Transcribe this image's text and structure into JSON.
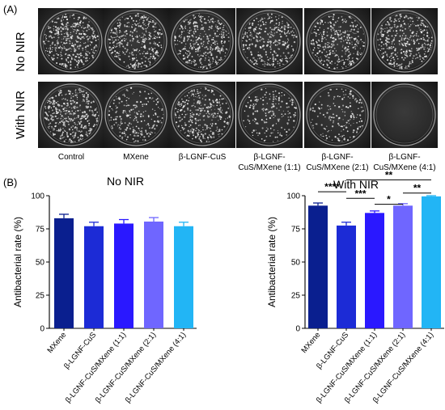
{
  "panel_a": {
    "label": "(A)",
    "rows": [
      "No NIR",
      "With NIR"
    ],
    "columns": [
      {
        "label_lines": [
          "Control"
        ]
      },
      {
        "label_lines": [
          "MXene"
        ]
      },
      {
        "label_lines": [
          "β-LGNF-CuS"
        ]
      },
      {
        "label_lines": [
          "β-LGNF-",
          "CuS/MXene (1:1)"
        ]
      },
      {
        "label_lines": [
          "β-LGNF-",
          "CuS/MXene (2:1)"
        ]
      },
      {
        "label_lines": [
          "β-LGNF-",
          "CuS/MXene (4:1)"
        ]
      }
    ],
    "colony_density": [
      [
        1.0,
        0.85,
        0.85,
        0.8,
        0.82,
        0.85
      ],
      [
        1.0,
        0.55,
        0.8,
        0.45,
        0.42,
        0.0
      ]
    ]
  },
  "panel_b": {
    "label": "(B)",
    "colors": [
      "#0a1f8f",
      "#1c2bd6",
      "#2a18ff",
      "#6f66ff",
      "#22b5f5"
    ],
    "chart_data": [
      {
        "type": "bar",
        "title": "No NIR",
        "ylabel": "Antibacterial rate (%)",
        "ylim": [
          0,
          100
        ],
        "yticks": [
          "0",
          "25",
          "50",
          "75",
          "100"
        ],
        "grid": false,
        "categories": [
          "MXene",
          "β-LGNF-CuS",
          "β-LGNF-CuS/MXene (1:1)",
          "β-LGNF-CuS/MXene (2:1)",
          "β-LGNF-CuS/MXene (4:1)"
        ],
        "values": [
          83,
          77,
          79,
          80.5,
          77
        ],
        "errors": [
          3,
          3,
          3,
          3,
          3
        ],
        "significance": []
      },
      {
        "type": "bar",
        "title": "With NIR",
        "ylabel": "Antibacterial rate (%)",
        "ylim": [
          0,
          100
        ],
        "yticks": [
          "0",
          "25",
          "50",
          "75",
          "100"
        ],
        "grid": false,
        "categories": [
          "MXene",
          "β-LGNF-CuS",
          "β-LGNF-CuS/MXene (1:1)",
          "β-LGNF-CuS/MXene (2:1)",
          "β-LGNF-CuS/MXene (4:1)"
        ],
        "values": [
          92.5,
          77.5,
          87,
          92.5,
          99.5
        ],
        "errors": [
          2,
          2.5,
          1.5,
          1.5,
          0.5
        ],
        "significance": [
          {
            "from": 0,
            "to": 1,
            "value": 103,
            "stars": "****"
          },
          {
            "from": 1,
            "to": 2,
            "value": 98,
            "stars": "***"
          },
          {
            "from": 2,
            "to": 3,
            "value": 93.5,
            "stars": "*"
          },
          {
            "from": 1,
            "to": 4,
            "value": 112,
            "stars": "**"
          },
          {
            "from": 3,
            "to": 4,
            "value": 102,
            "stars": "**"
          }
        ]
      }
    ]
  }
}
